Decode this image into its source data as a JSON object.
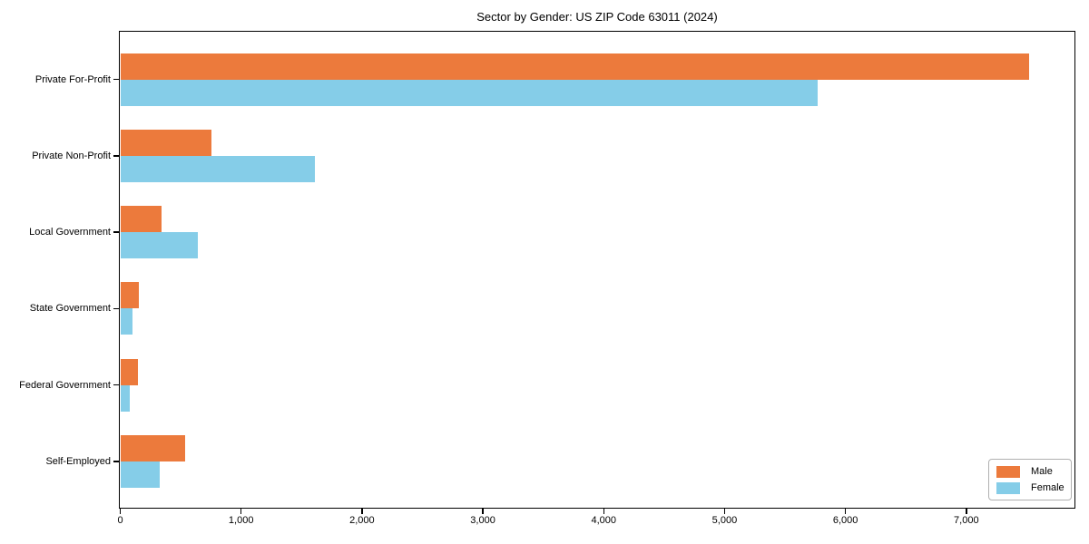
{
  "chart_data": {
    "type": "bar",
    "orientation": "horizontal",
    "title": "Sector by Gender: US ZIP Code 63011 (2024)",
    "categories": [
      "Private For-Profit",
      "Private Non-Profit",
      "Local Government",
      "State Government",
      "Federal Government",
      "Self-Employed"
    ],
    "series": [
      {
        "name": "Male",
        "color": "#ec7a3c",
        "values": [
          7516,
          752,
          338,
          150,
          148,
          533
        ]
      },
      {
        "name": "Female",
        "color": "#85cde8",
        "values": [
          5771,
          1609,
          640,
          100,
          82,
          328
        ]
      }
    ],
    "xlabel": "",
    "ylabel": "",
    "xlim": [
      0,
      7891
    ],
    "xtick_values": [
      0,
      1000,
      2000,
      3000,
      4000,
      5000,
      6000,
      7000
    ],
    "xtick_labels": [
      "0",
      "1,000",
      "2,000",
      "3,000",
      "4,000",
      "5,000",
      "6,000",
      "7,000"
    ],
    "grid": false,
    "legend_position": "lower right"
  }
}
